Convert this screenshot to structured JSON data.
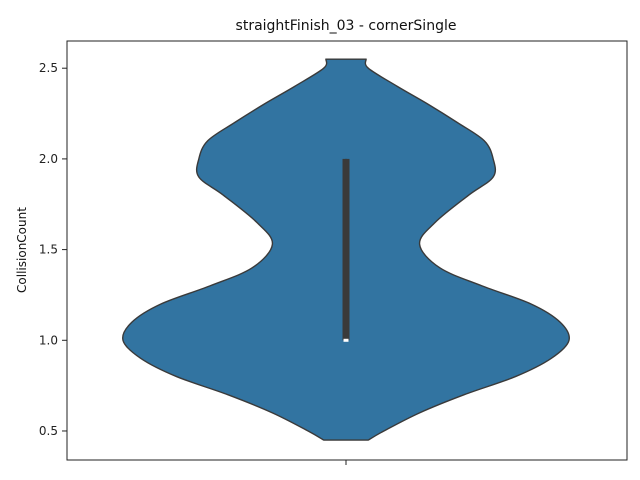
{
  "chart_data": {
    "type": "violin",
    "title": "straightFinish_03 - cornerSingle",
    "xlabel": "",
    "ylabel": "CollisionCount",
    "ylim": [
      0.34,
      2.65
    ],
    "yticks": [
      "0.5",
      "1.0",
      "1.5",
      "2.0",
      "2.5"
    ],
    "grid": false,
    "colors": {
      "violin_fill": "#3274a1",
      "outline": "#3a3a3a",
      "median": "#ffffff"
    },
    "series": [
      {
        "category": "",
        "values_summary": {
          "min": 1.0,
          "q1": 1.0,
          "median": 1.0,
          "q3": 2.0,
          "max": 2.0
        },
        "cut_range": [
          0.45,
          2.55
        ],
        "density_profile": [
          {
            "y": 0.45,
            "w": 0.1
          },
          {
            "y": 0.5,
            "w": 0.17
          },
          {
            "y": 0.6,
            "w": 0.33
          },
          {
            "y": 0.7,
            "w": 0.53
          },
          {
            "y": 0.8,
            "w": 0.76
          },
          {
            "y": 0.9,
            "w": 0.92
          },
          {
            "y": 1.0,
            "w": 1.0
          },
          {
            "y": 1.1,
            "w": 0.96
          },
          {
            "y": 1.2,
            "w": 0.83
          },
          {
            "y": 1.3,
            "w": 0.61
          },
          {
            "y": 1.4,
            "w": 0.42
          },
          {
            "y": 1.53,
            "w": 0.33
          },
          {
            "y": 1.65,
            "w": 0.4
          },
          {
            "y": 1.8,
            "w": 0.55
          },
          {
            "y": 1.9,
            "w": 0.66
          },
          {
            "y": 2.0,
            "w": 0.66
          },
          {
            "y": 2.1,
            "w": 0.62
          },
          {
            "y": 2.2,
            "w": 0.5
          },
          {
            "y": 2.3,
            "w": 0.37
          },
          {
            "y": 2.4,
            "w": 0.23
          },
          {
            "y": 2.5,
            "w": 0.1
          },
          {
            "y": 2.55,
            "w": 0.09
          }
        ]
      }
    ]
  }
}
